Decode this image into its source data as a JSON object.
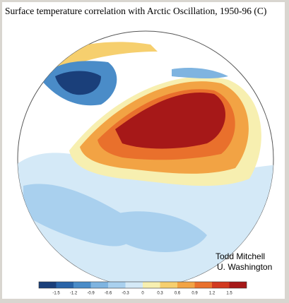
{
  "title": "Surface temperature correlation with Arctic Oscillation, 1950-96 (C)",
  "credit": [
    "Todd Mitchell",
    "U. Washington"
  ],
  "legend": {
    "ticks": [
      "-1.5",
      "-1.2",
      "-0.9",
      "-0.6",
      "-0.3",
      "0",
      "0.3",
      "0.6",
      "0.9",
      "1.2",
      "1.5"
    ],
    "colors": [
      "#1a3f7a",
      "#2a64a8",
      "#4a8cc8",
      "#7fb4e0",
      "#a9d0ee",
      "#d4e9f7",
      "#f7efb0",
      "#f6cf6e",
      "#f2a344",
      "#e9702c",
      "#d2391f",
      "#a61818"
    ]
  }
}
